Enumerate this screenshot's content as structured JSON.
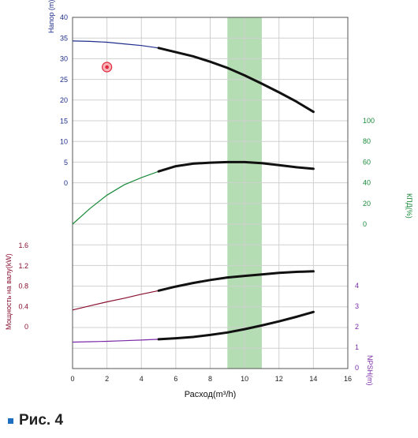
{
  "caption": "Рис. 4",
  "colors": {
    "head": "#1f2e8c",
    "efficiency": "#1a8a3a",
    "power": "#8a1030",
    "npsh": "#7a2aa8",
    "highlight_band": "#9bd29b",
    "marker": "#e0283c"
  },
  "chart_data": {
    "type": "line",
    "x_axis": {
      "label": "Расход(m³/h)",
      "range": [
        0,
        16
      ],
      "ticks": [
        "0",
        "2",
        "4",
        "6",
        "8",
        "10",
        "12",
        "14",
        "16"
      ]
    },
    "highlight_range": [
      9,
      11
    ],
    "marker": {
      "x": 2.0,
      "y": 28,
      "axis": "head"
    },
    "axes": [
      {
        "id": "head",
        "label": "Напор (m)",
        "side": "left",
        "ticks": [
          "0",
          "5",
          "10",
          "15",
          "20",
          "25",
          "30",
          "35",
          "40"
        ],
        "range": [
          0,
          40
        ]
      },
      {
        "id": "efficiency",
        "label": "КПД(%)",
        "side": "right",
        "ticks": [
          "0",
          "20",
          "40",
          "60",
          "80",
          "100"
        ],
        "range": [
          0,
          100
        ]
      },
      {
        "id": "power",
        "label": "Мощность на валу(kW)",
        "side": "left",
        "ticks": [
          "0",
          "0.4",
          "0.8",
          "1.2",
          "1.6"
        ],
        "range": [
          0,
          1.6
        ]
      },
      {
        "id": "npsh",
        "label": "NPSH(m)",
        "side": "right",
        "ticks": [
          "0",
          "1",
          "2",
          "3",
          "4"
        ],
        "range": [
          0,
          4
        ]
      }
    ],
    "series": [
      {
        "axis": "head",
        "x": [
          0,
          1,
          2,
          3,
          4,
          5,
          6,
          7,
          8,
          9,
          10,
          11,
          12,
          13,
          14
        ],
        "y": [
          34.3,
          34.2,
          34.0,
          33.6,
          33.2,
          32.6,
          31.6,
          30.6,
          29.3,
          27.8,
          26.0,
          24.0,
          21.9,
          19.7,
          17.2
        ]
      },
      {
        "axis": "efficiency",
        "x": [
          0,
          1,
          2,
          3,
          4,
          5,
          6,
          7,
          8,
          9,
          10,
          11,
          12,
          13,
          14
        ],
        "y": [
          0,
          15,
          28,
          38,
          45,
          51,
          56,
          58.5,
          59.5,
          60,
          60,
          59,
          57,
          55,
          53.5
        ]
      },
      {
        "axis": "power",
        "x": [
          0,
          1,
          2,
          3,
          4,
          5,
          6,
          7,
          8,
          9,
          10,
          11,
          12,
          13,
          14
        ],
        "y": [
          0.33,
          0.41,
          0.49,
          0.56,
          0.64,
          0.71,
          0.79,
          0.86,
          0.92,
          0.97,
          1.0,
          1.03,
          1.06,
          1.08,
          1.09
        ]
      },
      {
        "axis": "npsh",
        "x": [
          0,
          1,
          2,
          3,
          4,
          5,
          6,
          7,
          8,
          9,
          10,
          11,
          12,
          13,
          14
        ],
        "y": [
          1.25,
          1.27,
          1.29,
          1.32,
          1.35,
          1.39,
          1.44,
          1.5,
          1.6,
          1.72,
          1.88,
          2.06,
          2.26,
          2.48,
          2.72
        ]
      }
    ]
  }
}
